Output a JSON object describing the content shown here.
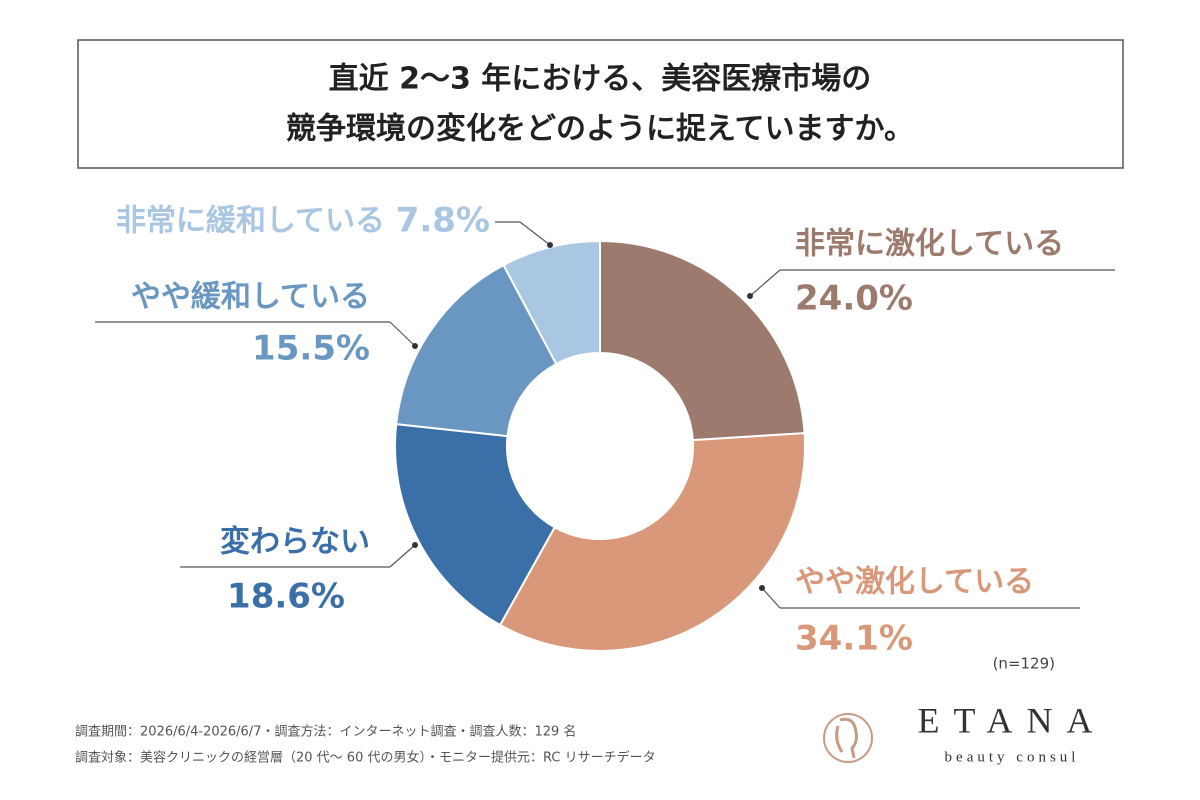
{
  "chart_data": {
    "type": "donut",
    "title": [
      "直近 2〜3 年における、美容医療市場の",
      "競争環境の変化をどのように捉えていますか。"
    ],
    "categories": [
      "非常に激化している",
      "やや激化している",
      "変わらない",
      "やや緩和している",
      "非常に緩和している"
    ],
    "values": [
      24.0,
      34.1,
      18.6,
      15.5,
      7.8
    ],
    "value_labels": [
      "24.0%",
      "34.1%",
      "18.6%",
      "15.5%",
      "7.8%"
    ],
    "colors": [
      "#9c7a6e",
      "#d9987a",
      "#3a6fa8",
      "#6a97c2",
      "#a9c6e2"
    ],
    "sample_note": "(n=129)"
  },
  "footnotes": [
    "調査期間：2026/6/4-2026/6/7・調査方法：インターネット調査・調査人数：129 名",
    "調査対象：美容クリニックの経営層（20 代〜 60 代の男女）・モニター提供元：RC リサーチデータ"
  ],
  "logo": {
    "name": "ETANA",
    "tagline": "beauty consul"
  }
}
